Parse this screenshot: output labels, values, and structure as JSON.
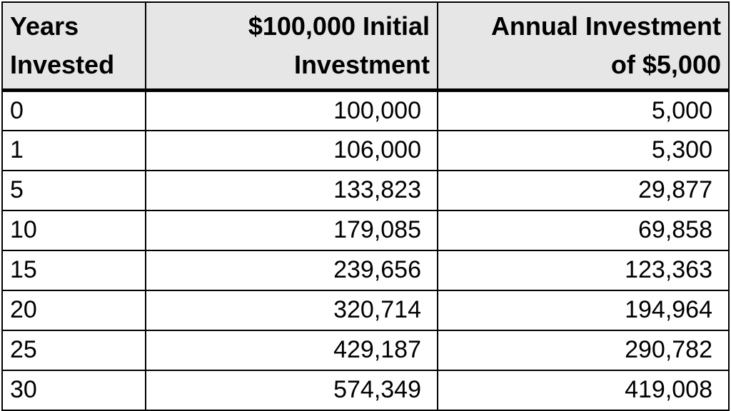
{
  "chart_data": {
    "type": "table",
    "columns": [
      {
        "line1": "Years",
        "line2": "Invested"
      },
      {
        "line1": "$100,000 Initial",
        "line2": "Investment"
      },
      {
        "line1": "Annual Investment",
        "line2": "of $5,000"
      }
    ],
    "rows": [
      [
        "0",
        "100,000",
        "5,000"
      ],
      [
        "1",
        "106,000",
        "5,300"
      ],
      [
        "5",
        "133,823",
        "29,877"
      ],
      [
        "10",
        "179,085",
        "69,858"
      ],
      [
        "15",
        "239,656",
        "123,363"
      ],
      [
        "20",
        "320,714",
        "194,964"
      ],
      [
        "25",
        "429,187",
        "290,782"
      ],
      [
        "30",
        "574,349",
        "419,008"
      ]
    ],
    "header_background": "#e7e6e6",
    "border_color": "#000000"
  }
}
